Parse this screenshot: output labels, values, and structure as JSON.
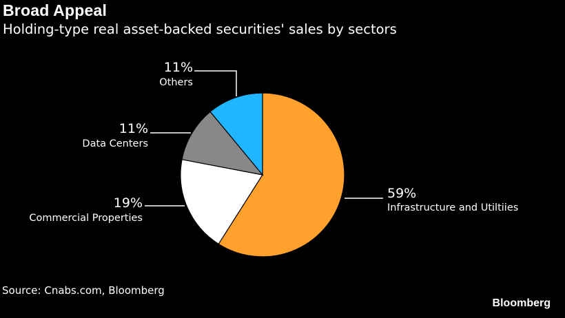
{
  "header": {
    "title": "Broad Appeal",
    "subtitle": "Holding-type real asset-backed securities' sales by sectors"
  },
  "footer": {
    "source": "Source: Cnabs.com, Bloomberg",
    "brand": "Bloomberg"
  },
  "chart_data": {
    "type": "pie",
    "start_angle_deg": 0,
    "direction": "clockwise",
    "slices": [
      {
        "label": "Infrastructure and Utiltiies",
        "value": 59,
        "value_label": "59%",
        "color": "#ffa12c"
      },
      {
        "label": "Commercial Properties",
        "value": 19,
        "value_label": "19%",
        "color": "#ffffff"
      },
      {
        "label": "Data Centers",
        "value": 11,
        "value_label": "11%",
        "color": "#888888"
      },
      {
        "label": "Others",
        "value": 11,
        "value_label": "11%",
        "color": "#1fb6ff"
      }
    ]
  }
}
